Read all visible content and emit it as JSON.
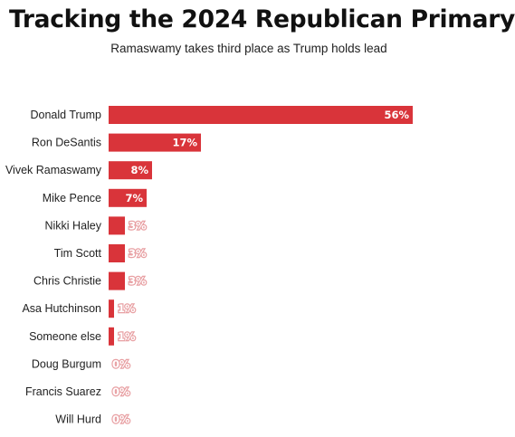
{
  "colors": {
    "bar": "#d9343a"
  },
  "chart_data": {
    "type": "bar",
    "orientation": "horizontal",
    "title": "Tracking the 2024 Republican Primary",
    "subtitle": "Ramaswamy takes third place as Trump holds lead",
    "categories": [
      "Donald Trump",
      "Ron DeSantis",
      "Vivek Ramaswamy",
      "Mike Pence",
      "Nikki Haley",
      "Tim Scott",
      "Chris Christie",
      "Asa Hutchinson",
      "Someone else",
      "Doug Burgum",
      "Francis Suarez",
      "Will Hurd"
    ],
    "values": [
      56,
      17,
      8,
      7,
      3,
      3,
      3,
      1,
      1,
      0,
      0,
      0
    ],
    "value_labels": [
      "56%",
      "17%",
      "8%",
      "7%",
      "3%",
      "3%",
      "3%",
      "1%",
      "1%",
      "0%",
      "0%",
      "0%"
    ],
    "xlim": [
      0,
      56
    ],
    "grid": false,
    "legend": false
  }
}
